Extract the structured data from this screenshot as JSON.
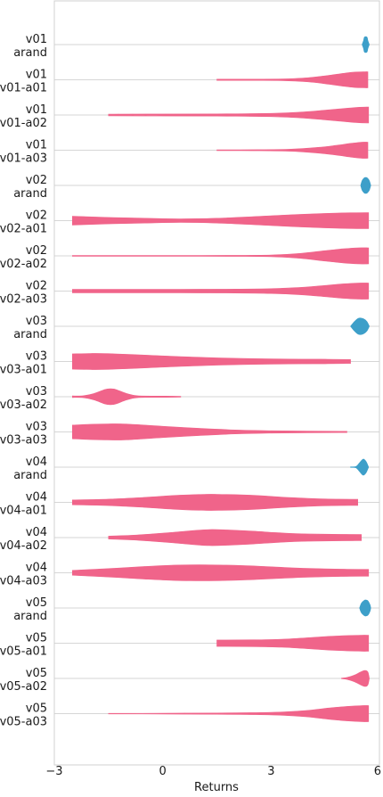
{
  "chart_data": {
    "type": "violin",
    "xlabel": "Returns",
    "xlim": [
      -3,
      6
    ],
    "xticks": [
      -3,
      0,
      3,
      6
    ],
    "xtick_labels": [
      "−3",
      "0",
      "3",
      "6"
    ],
    "colors": {
      "compare": "#f0648a",
      "arand": "#3d9fc9"
    },
    "rows": [
      {
        "label1": "v01",
        "label2": "arand",
        "kind": "arand",
        "points": [
          [
            5.52,
            0.0
          ],
          [
            5.56,
            0.5
          ],
          [
            5.58,
            0.9
          ],
          [
            5.62,
            1.0
          ],
          [
            5.66,
            0.9
          ],
          [
            5.68,
            0.5
          ],
          [
            5.72,
            0.0
          ]
        ]
      },
      {
        "label1": "v01",
        "label2": "v01-a01",
        "kind": "compare",
        "points": [
          [
            1.5,
            0.08
          ],
          [
            2.5,
            0.08
          ],
          [
            3.3,
            0.1
          ],
          [
            4.0,
            0.25
          ],
          [
            4.6,
            0.55
          ],
          [
            5.0,
            0.8
          ],
          [
            5.3,
            0.95
          ],
          [
            5.6,
            1.0
          ],
          [
            5.68,
            1.0
          ]
        ]
      },
      {
        "label1": "v01",
        "label2": "v01-a02",
        "kind": "compare",
        "points": [
          [
            -1.5,
            0.1
          ],
          [
            0.0,
            0.12
          ],
          [
            1.5,
            0.14
          ],
          [
            3.0,
            0.2
          ],
          [
            3.8,
            0.35
          ],
          [
            4.5,
            0.6
          ],
          [
            5.0,
            0.8
          ],
          [
            5.4,
            0.95
          ],
          [
            5.7,
            1.0
          ]
        ]
      },
      {
        "label1": "v01",
        "label2": "v01-a03",
        "kind": "compare",
        "points": [
          [
            1.5,
            0.05
          ],
          [
            2.5,
            0.06
          ],
          [
            3.5,
            0.12
          ],
          [
            4.3,
            0.35
          ],
          [
            4.8,
            0.6
          ],
          [
            5.2,
            0.85
          ],
          [
            5.5,
            1.0
          ],
          [
            5.68,
            1.0
          ]
        ]
      },
      {
        "label1": "v02",
        "label2": "arand",
        "kind": "arand",
        "points": [
          [
            5.48,
            0.0
          ],
          [
            5.52,
            0.6
          ],
          [
            5.58,
            0.95
          ],
          [
            5.62,
            1.0
          ],
          [
            5.66,
            0.95
          ],
          [
            5.72,
            0.6
          ],
          [
            5.76,
            0.0
          ]
        ]
      },
      {
        "label1": "v02",
        "label2": "v02-a01",
        "kind": "compare",
        "points": [
          [
            -2.5,
            0.55
          ],
          [
            -1.5,
            0.4
          ],
          [
            -0.5,
            0.3
          ],
          [
            0.5,
            0.22
          ],
          [
            1.5,
            0.3
          ],
          [
            2.5,
            0.5
          ],
          [
            3.5,
            0.72
          ],
          [
            4.5,
            0.9
          ],
          [
            5.2,
            0.98
          ],
          [
            5.7,
            1.0
          ]
        ]
      },
      {
        "label1": "v02",
        "label2": "v02-a02",
        "kind": "compare",
        "points": [
          [
            -2.5,
            0.05
          ],
          [
            -1.0,
            0.05
          ],
          [
            0.5,
            0.05
          ],
          [
            2.0,
            0.06
          ],
          [
            3.0,
            0.1
          ],
          [
            3.8,
            0.3
          ],
          [
            4.5,
            0.65
          ],
          [
            5.0,
            0.88
          ],
          [
            5.4,
            1.0
          ],
          [
            5.7,
            1.0
          ]
        ]
      },
      {
        "label1": "v02",
        "label2": "v02-a03",
        "kind": "compare",
        "points": [
          [
            -2.5,
            0.22
          ],
          [
            -1.0,
            0.22
          ],
          [
            0.5,
            0.22
          ],
          [
            2.0,
            0.24
          ],
          [
            3.0,
            0.3
          ],
          [
            3.8,
            0.45
          ],
          [
            4.5,
            0.7
          ],
          [
            5.0,
            0.9
          ],
          [
            5.4,
            1.0
          ],
          [
            5.7,
            1.0
          ]
        ]
      },
      {
        "label1": "v03",
        "label2": "arand",
        "kind": "arand",
        "points": [
          [
            5.2,
            0.0
          ],
          [
            5.3,
            0.55
          ],
          [
            5.42,
            1.0
          ],
          [
            5.55,
            0.95
          ],
          [
            5.65,
            0.6
          ],
          [
            5.72,
            0.0
          ]
        ]
      },
      {
        "label1": "v03",
        "label2": "v03-a01",
        "kind": "compare",
        "points": [
          [
            -2.5,
            0.95
          ],
          [
            -2.0,
            1.0
          ],
          [
            -1.5,
            0.98
          ],
          [
            -0.5,
            0.8
          ],
          [
            0.5,
            0.6
          ],
          [
            1.5,
            0.45
          ],
          [
            2.5,
            0.35
          ],
          [
            3.5,
            0.3
          ],
          [
            4.5,
            0.28
          ],
          [
            5.2,
            0.25
          ]
        ]
      },
      {
        "label1": "v03",
        "label2": "v03-a02",
        "kind": "compare",
        "points": [
          [
            -2.5,
            0.1
          ],
          [
            -2.2,
            0.12
          ],
          [
            -1.9,
            0.4
          ],
          [
            -1.6,
            0.9
          ],
          [
            -1.45,
            1.0
          ],
          [
            -1.3,
            0.9
          ],
          [
            -1.0,
            0.4
          ],
          [
            -0.7,
            0.12
          ],
          [
            0.0,
            0.08
          ],
          [
            0.5,
            0.05
          ]
        ]
      },
      {
        "label1": "v03",
        "label2": "v03-a03",
        "kind": "compare",
        "points": [
          [
            -2.5,
            0.85
          ],
          [
            -2.0,
            0.95
          ],
          [
            -1.5,
            1.0
          ],
          [
            -1.0,
            0.98
          ],
          [
            0.0,
            0.7
          ],
          [
            1.0,
            0.45
          ],
          [
            2.0,
            0.25
          ],
          [
            3.0,
            0.15
          ],
          [
            4.0,
            0.1
          ],
          [
            5.1,
            0.08
          ]
        ]
      },
      {
        "label1": "v04",
        "label2": "arand",
        "kind": "arand",
        "points": [
          [
            5.2,
            0.04
          ],
          [
            5.35,
            0.08
          ],
          [
            5.45,
            0.55
          ],
          [
            5.55,
            1.0
          ],
          [
            5.63,
            0.7
          ],
          [
            5.7,
            0.0
          ]
        ]
      },
      {
        "label1": "v04",
        "label2": "v04-a01",
        "kind": "compare",
        "points": [
          [
            -2.5,
            0.3
          ],
          [
            -1.5,
            0.4
          ],
          [
            -0.5,
            0.62
          ],
          [
            0.3,
            0.85
          ],
          [
            1.0,
            0.98
          ],
          [
            1.5,
            1.0
          ],
          [
            2.5,
            0.88
          ],
          [
            3.5,
            0.6
          ],
          [
            4.5,
            0.42
          ],
          [
            5.4,
            0.38
          ]
        ]
      },
      {
        "label1": "v04",
        "label2": "v04-a02",
        "kind": "compare",
        "points": [
          [
            -1.5,
            0.18
          ],
          [
            -0.8,
            0.3
          ],
          [
            0.0,
            0.55
          ],
          [
            0.8,
            0.85
          ],
          [
            1.3,
            1.0
          ],
          [
            1.8,
            0.95
          ],
          [
            2.5,
            0.8
          ],
          [
            3.2,
            0.6
          ],
          [
            4.0,
            0.45
          ],
          [
            5.5,
            0.38
          ]
        ]
      },
      {
        "label1": "v04",
        "label2": "v04-a03",
        "kind": "compare",
        "points": [
          [
            -2.5,
            0.3
          ],
          [
            -1.5,
            0.52
          ],
          [
            -0.5,
            0.78
          ],
          [
            0.3,
            0.95
          ],
          [
            1.0,
            1.0
          ],
          [
            1.8,
            0.95
          ],
          [
            2.5,
            0.85
          ],
          [
            3.2,
            0.7
          ],
          [
            4.0,
            0.55
          ],
          [
            5.0,
            0.45
          ],
          [
            5.7,
            0.42
          ]
        ]
      },
      {
        "label1": "v05",
        "label2": "arand",
        "kind": "arand",
        "points": [
          [
            5.45,
            0.0
          ],
          [
            5.5,
            0.6
          ],
          [
            5.58,
            0.95
          ],
          [
            5.62,
            1.0
          ],
          [
            5.68,
            0.9
          ],
          [
            5.74,
            0.4
          ],
          [
            5.76,
            0.0
          ]
        ]
      },
      {
        "label1": "v05",
        "label2": "v05-a01",
        "kind": "compare",
        "points": [
          [
            1.5,
            0.4
          ],
          [
            2.5,
            0.42
          ],
          [
            3.3,
            0.5
          ],
          [
            4.0,
            0.68
          ],
          [
            4.6,
            0.85
          ],
          [
            5.1,
            0.95
          ],
          [
            5.5,
            1.0
          ],
          [
            5.7,
            1.0
          ]
        ]
      },
      {
        "label1": "v05",
        "label2": "v05-a02",
        "kind": "compare",
        "points": [
          [
            4.95,
            0.04
          ],
          [
            5.1,
            0.12
          ],
          [
            5.3,
            0.4
          ],
          [
            5.48,
            0.8
          ],
          [
            5.6,
            1.0
          ],
          [
            5.68,
            0.8
          ],
          [
            5.72,
            0.0
          ]
        ]
      },
      {
        "label1": "v05",
        "label2": "v05-a03",
        "kind": "compare",
        "points": [
          [
            -1.5,
            0.03
          ],
          [
            0.0,
            0.05
          ],
          [
            1.5,
            0.08
          ],
          [
            2.5,
            0.12
          ],
          [
            3.3,
            0.2
          ],
          [
            4.0,
            0.4
          ],
          [
            4.6,
            0.7
          ],
          [
            5.1,
            0.9
          ],
          [
            5.5,
            1.0
          ],
          [
            5.7,
            1.0
          ]
        ]
      }
    ]
  }
}
